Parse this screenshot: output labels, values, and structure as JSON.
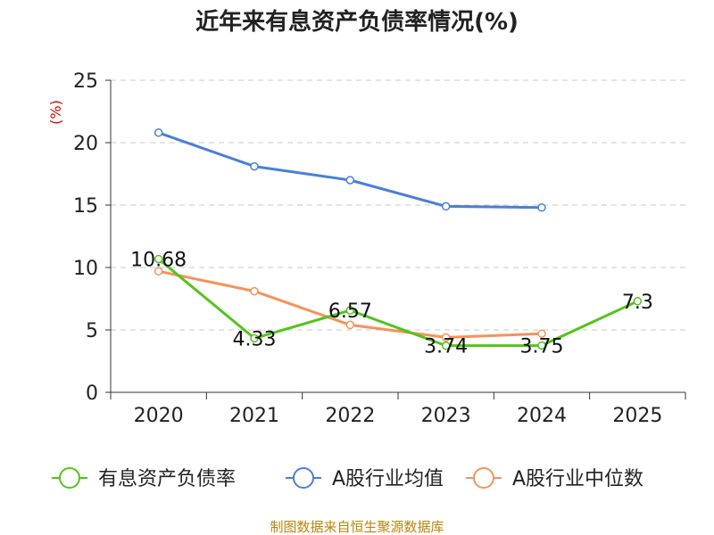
{
  "chart_data": {
    "type": "line",
    "title": "近年来有息资产负债率情况(%)",
    "ylabel": "(%)",
    "xlabel": "",
    "categories": [
      "2020",
      "2021",
      "2022",
      "2023",
      "2024",
      "2025"
    ],
    "ylim": [
      0,
      25
    ],
    "yticks": [
      0,
      5,
      10,
      15,
      20,
      25
    ],
    "grid": true,
    "legend_position": "bottom",
    "series": [
      {
        "name": "有息资产负债率",
        "color": "#52c41a",
        "values": [
          10.68,
          4.33,
          6.57,
          3.74,
          3.75,
          7.3
        ],
        "labels": [
          "10.68",
          "4.33",
          "6.57",
          "3.74",
          "3.75",
          "7.3"
        ]
      },
      {
        "name": "A股行业均值",
        "color": "#4a7fd9",
        "values": [
          20.8,
          18.1,
          17.0,
          14.9,
          14.8,
          null
        ]
      },
      {
        "name": "A股行业中位数",
        "color": "#f4935a",
        "values": [
          9.7,
          8.1,
          5.4,
          4.4,
          4.7,
          null
        ]
      }
    ],
    "source": "制图数据来自恒生聚源数据库"
  }
}
